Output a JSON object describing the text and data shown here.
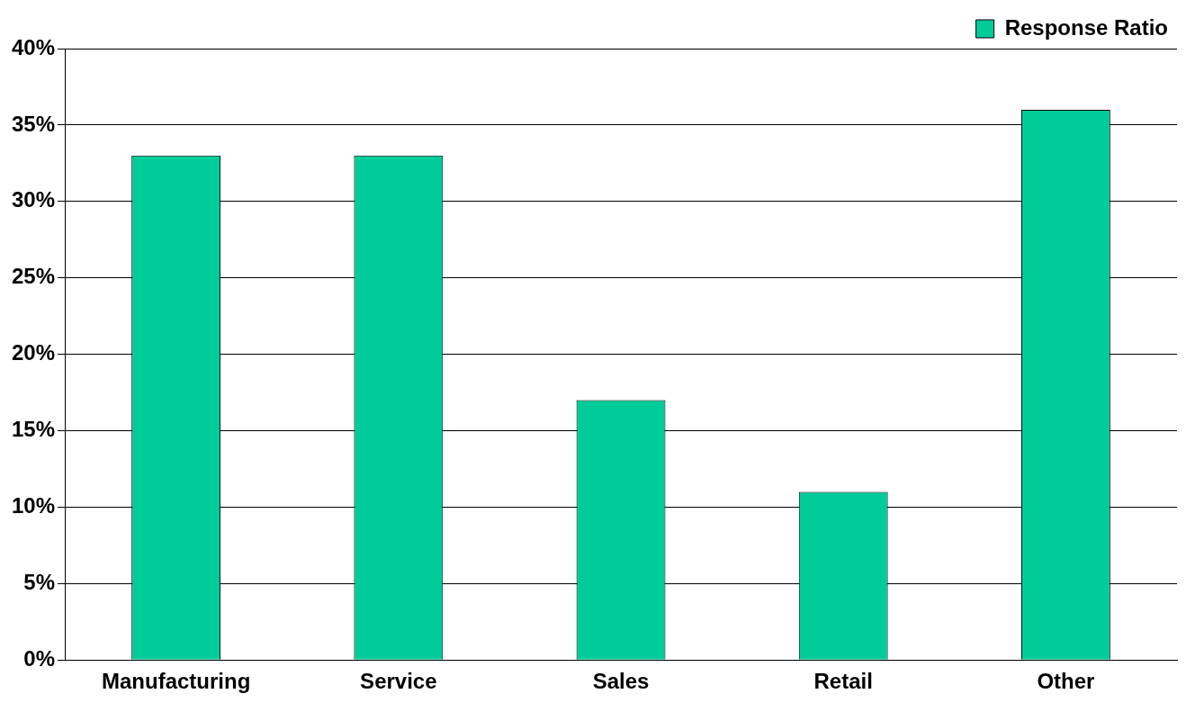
{
  "chart_data": {
    "type": "bar",
    "categories": [
      "Manufacturing",
      "Service",
      "Sales",
      "Retail",
      "Other"
    ],
    "series": [
      {
        "name": "Response Ratio",
        "color": "#00cc99",
        "values": [
          33,
          33,
          17,
          11,
          36
        ]
      }
    ],
    "ylim": [
      0,
      40
    ],
    "yticks": [
      {
        "value": 0,
        "label": "0%"
      },
      {
        "value": 5,
        "label": "5%"
      },
      {
        "value": 10,
        "label": "10%"
      },
      {
        "value": 15,
        "label": "15%"
      },
      {
        "value": 20,
        "label": "20%"
      },
      {
        "value": 25,
        "label": "25%"
      },
      {
        "value": 30,
        "label": "30%"
      },
      {
        "value": 35,
        "label": "35%"
      },
      {
        "value": 40,
        "label": "40%"
      }
    ],
    "grid": "y",
    "legend": "top right"
  }
}
